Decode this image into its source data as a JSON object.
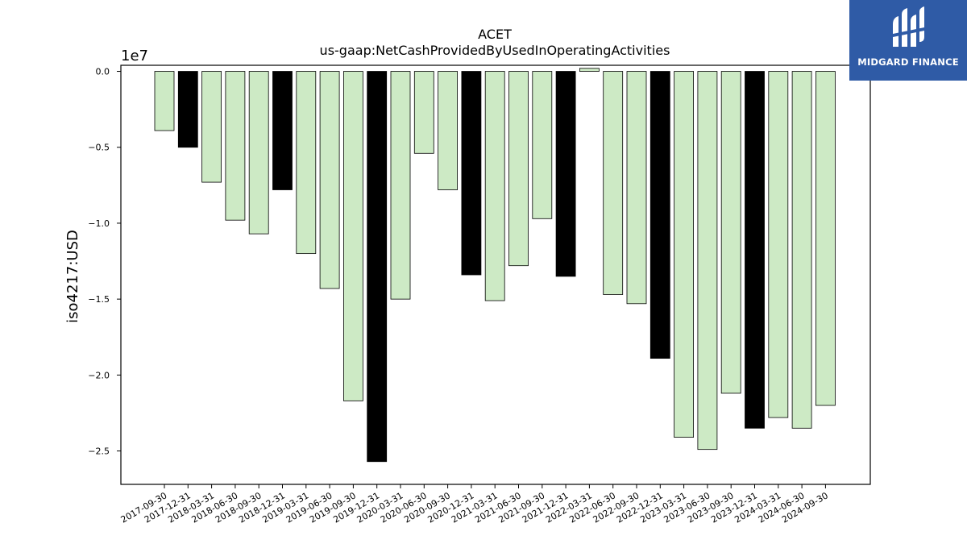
{
  "chart_data": {
    "type": "bar",
    "title": "ACET",
    "subtitle": "us-gaap:NetCashProvidedByUsedInOperatingActivities",
    "ylabel": "iso4217:USD",
    "xlabel": "",
    "exponent_label": "1e7",
    "ylim": [
      -27200000.0,
      400000.0
    ],
    "yticks": [
      0,
      -5000000,
      -10000000,
      -15000000,
      -20000000,
      -25000000
    ],
    "ytick_labels": [
      "0.0",
      "−0.5",
      "−1.0",
      "−1.5",
      "−2.0",
      "−2.5"
    ],
    "grid": false,
    "colors": {
      "quarter": "#cdeac5",
      "year_end": "#000000",
      "edge": "#000000"
    },
    "categories": [
      "2017-09-30",
      "2017-12-31",
      "2018-03-31",
      "2018-06-30",
      "2018-09-30",
      "2018-12-31",
      "2019-03-31",
      "2019-06-30",
      "2019-09-30",
      "2019-12-31",
      "2020-03-31",
      "2020-06-30",
      "2020-09-30",
      "2020-12-31",
      "2021-03-31",
      "2021-06-30",
      "2021-09-30",
      "2021-12-31",
      "2022-03-31",
      "2022-06-30",
      "2022-09-30",
      "2022-12-31",
      "2023-03-31",
      "2023-06-30",
      "2023-09-30",
      "2023-12-31",
      "2024-03-31",
      "2024-06-30",
      "2024-09-30"
    ],
    "values": [
      -3900000,
      -5000000,
      -7300000,
      -9800000,
      -10700000,
      -7800000,
      -12000000,
      -14300000,
      -21700000,
      -25700000,
      -15000000,
      -5400000,
      -7800000,
      -13400000,
      -15100000,
      -12800000,
      -9700000,
      -13500000,
      200000,
      -14700000,
      -15300000,
      -18900000,
      -24100000,
      -24900000,
      -21200000,
      -23500000,
      -22800000,
      -23500000,
      -22000000
    ],
    "year_end": [
      false,
      true,
      false,
      false,
      false,
      true,
      false,
      false,
      false,
      true,
      false,
      false,
      false,
      true,
      false,
      false,
      false,
      true,
      false,
      false,
      false,
      true,
      false,
      false,
      false,
      true,
      false,
      false,
      false
    ]
  },
  "logo": {
    "text": "MIDGARD FINANCE",
    "icon": "midgard-logo-icon",
    "color": "#2f5ba6"
  }
}
